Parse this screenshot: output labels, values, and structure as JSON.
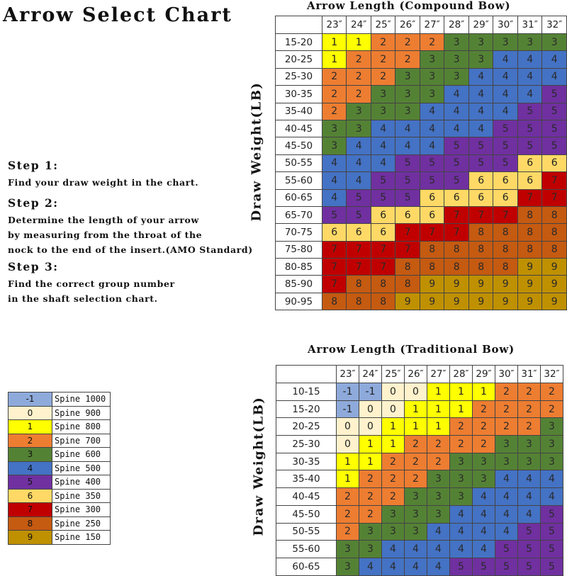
{
  "title": "Arrow Select Chart",
  "steps": [
    {
      "heading": "Step 1:",
      "lines": [
        "Find your draw weight in the chart."
      ]
    },
    {
      "heading": "Step 2:",
      "lines": [
        "Determine the length of your arrow",
        "by measuring from the throat of the",
        "nock to the end of the insert.(AMO Standard)"
      ]
    },
    {
      "heading": "Step 3:",
      "lines": [
        "Find the correct group number",
        "in the shaft selection chart."
      ]
    }
  ],
  "colors": {
    "-1": "#8eaadb",
    "0": "#fff2cc",
    "1": "#ffff00",
    "2": "#ed7d31",
    "3": "#548235",
    "4": "#4472c4",
    "5": "#7030a0",
    "6": "#ffd966",
    "7": "#c00000",
    "8": "#c55a11",
    "9": "#bf9000"
  },
  "legend": [
    {
      "group": "-1",
      "label": "Spine 1000"
    },
    {
      "group": "0",
      "label": "Spine 900"
    },
    {
      "group": "1",
      "label": "Spine 800"
    },
    {
      "group": "2",
      "label": "Spine 700"
    },
    {
      "group": "3",
      "label": "Spine 600"
    },
    {
      "group": "4",
      "label": "Spine 500"
    },
    {
      "group": "5",
      "label": "Spine 400"
    },
    {
      "group": "6",
      "label": "Spine 350"
    },
    {
      "group": "7",
      "label": "Spine 300"
    },
    {
      "group": "8",
      "label": "Spine 250"
    },
    {
      "group": "9",
      "label": "Spine 150"
    }
  ],
  "chart_data": [
    {
      "type": "table",
      "title": "Arrow Length (Compound Bow)",
      "ylabel": "Draw Weight(LB)",
      "columns": [
        "23″",
        "24″",
        "25″",
        "26″",
        "27″",
        "28″",
        "29″",
        "30″",
        "31″",
        "32″"
      ],
      "rows": [
        "15-20",
        "20-25",
        "25-30",
        "30-35",
        "35-40",
        "40-45",
        "45-50",
        "50-55",
        "55-60",
        "60-65",
        "65-70",
        "70-75",
        "75-80",
        "80-85",
        "85-90",
        "90-95"
      ],
      "values": [
        [
          1,
          1,
          2,
          2,
          2,
          3,
          3,
          3,
          3,
          3
        ],
        [
          1,
          2,
          2,
          2,
          3,
          3,
          3,
          4,
          4,
          4
        ],
        [
          2,
          2,
          2,
          3,
          3,
          3,
          4,
          4,
          4,
          4
        ],
        [
          2,
          2,
          3,
          3,
          3,
          4,
          4,
          4,
          4,
          5
        ],
        [
          2,
          3,
          3,
          3,
          4,
          4,
          4,
          4,
          5,
          5
        ],
        [
          3,
          3,
          4,
          4,
          4,
          4,
          4,
          5,
          5,
          5
        ],
        [
          3,
          4,
          4,
          4,
          4,
          5,
          5,
          5,
          5,
          5
        ],
        [
          4,
          4,
          4,
          5,
          5,
          5,
          5,
          5,
          6,
          6
        ],
        [
          4,
          4,
          5,
          5,
          5,
          5,
          6,
          6,
          6,
          7
        ],
        [
          4,
          5,
          5,
          5,
          6,
          6,
          6,
          6,
          7,
          7
        ],
        [
          5,
          5,
          6,
          6,
          6,
          7,
          7,
          7,
          8,
          8
        ],
        [
          6,
          6,
          6,
          7,
          7,
          7,
          8,
          8,
          8,
          8
        ],
        [
          7,
          7,
          7,
          7,
          8,
          8,
          8,
          8,
          8,
          8
        ],
        [
          7,
          7,
          7,
          8,
          8,
          8,
          8,
          8,
          9,
          9
        ],
        [
          7,
          8,
          8,
          8,
          9,
          9,
          9,
          9,
          9,
          9
        ],
        [
          8,
          8,
          8,
          9,
          9,
          9,
          9,
          9,
          9,
          9
        ]
      ]
    },
    {
      "type": "table",
      "title": "Arrow Length  (Traditional Bow)",
      "ylabel": "Draw Weight(LB)",
      "columns": [
        "23″",
        "24″",
        "25″",
        "26″",
        "27″",
        "28″",
        "29″",
        "30″",
        "31″",
        "32″"
      ],
      "rows": [
        "10-15",
        "15-20",
        "20-25",
        "25-30",
        "30-35",
        "35-40",
        "40-45",
        "45-50",
        "50-55",
        "55-60",
        "60-65"
      ],
      "values": [
        [
          -1,
          -1,
          0,
          0,
          1,
          1,
          1,
          2,
          2,
          2
        ],
        [
          -1,
          0,
          0,
          1,
          1,
          1,
          2,
          2,
          2,
          2
        ],
        [
          0,
          0,
          1,
          1,
          1,
          2,
          2,
          2,
          2,
          3
        ],
        [
          0,
          1,
          1,
          2,
          2,
          2,
          2,
          3,
          3,
          3
        ],
        [
          1,
          1,
          2,
          2,
          2,
          3,
          3,
          3,
          3,
          3
        ],
        [
          1,
          2,
          2,
          2,
          3,
          3,
          3,
          4,
          4,
          4
        ],
        [
          2,
          2,
          2,
          3,
          3,
          3,
          4,
          4,
          4,
          4
        ],
        [
          2,
          2,
          3,
          3,
          3,
          4,
          4,
          4,
          4,
          5
        ],
        [
          2,
          3,
          3,
          3,
          4,
          4,
          4,
          4,
          5,
          5
        ],
        [
          3,
          3,
          4,
          4,
          4,
          4,
          4,
          5,
          5,
          5
        ],
        [
          3,
          4,
          4,
          4,
          4,
          5,
          5,
          5,
          5,
          5
        ]
      ]
    }
  ]
}
